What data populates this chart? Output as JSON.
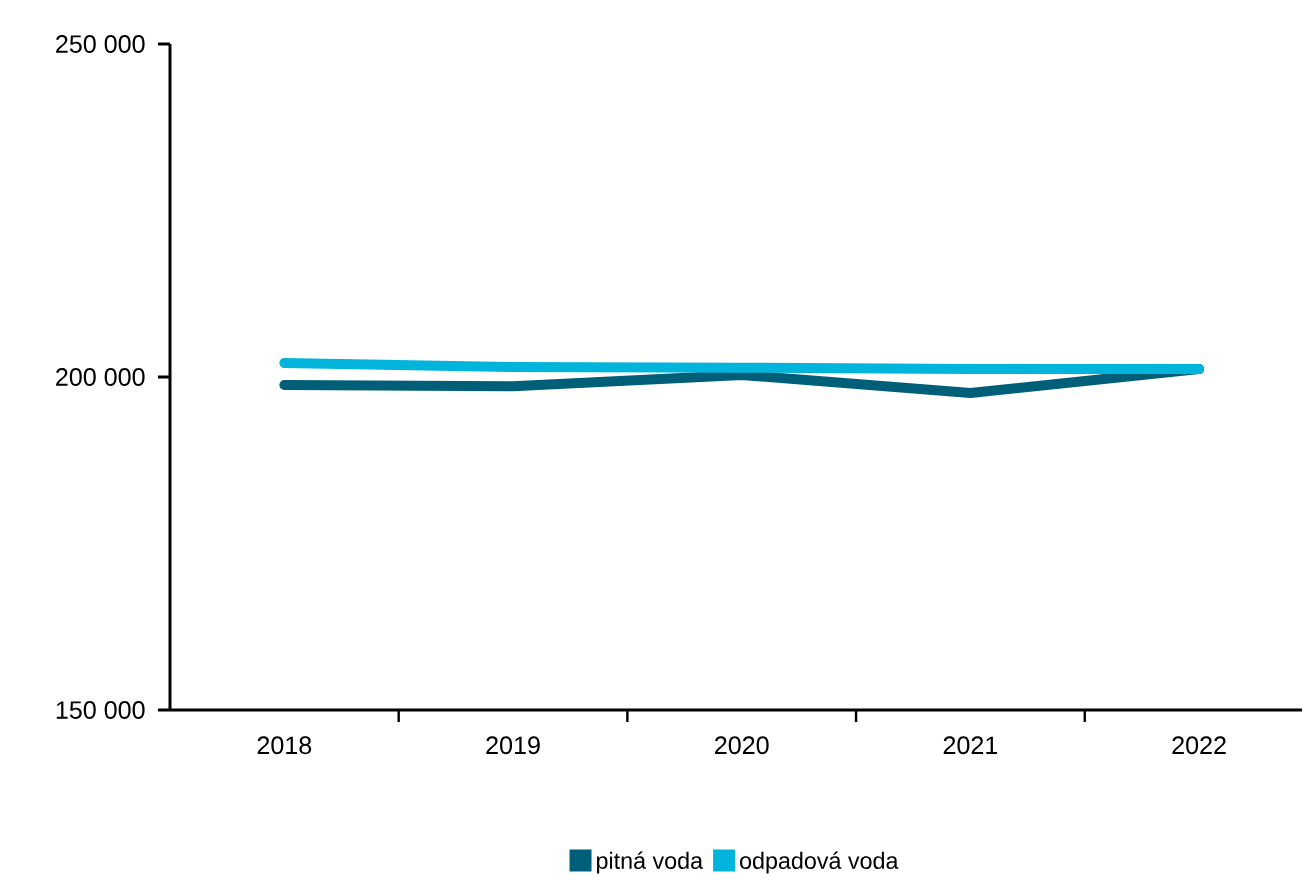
{
  "chart_data": {
    "type": "line",
    "categories": [
      "2018",
      "2019",
      "2020",
      "2021",
      "2022"
    ],
    "series": [
      {
        "name": "pitná voda",
        "color": "#005f78",
        "values": [
          198800,
          198600,
          200300,
          197600,
          201200
        ]
      },
      {
        "name": "odpadová voda",
        "color": "#00b4dc",
        "values": [
          202100,
          201500,
          201400,
          201200,
          201200
        ]
      }
    ],
    "ylim": [
      150000,
      250000
    ],
    "yticks": [
      {
        "value": 150000,
        "label": "150 000"
      },
      {
        "value": 200000,
        "label": "200 000"
      },
      {
        "value": 250000,
        "label": "250 000"
      }
    ],
    "grid": false,
    "legend": "bottom",
    "marker": "none",
    "line_style": "solid"
  }
}
